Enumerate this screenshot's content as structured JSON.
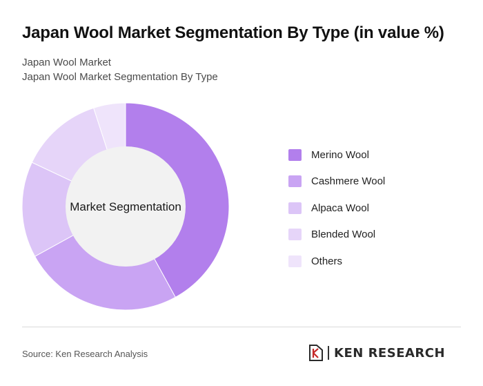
{
  "header": {
    "title": "Japan Wool Market Segmentation By Type (in value %)",
    "subtitle_line1": "Japan Wool Market",
    "subtitle_line2": "Japan Wool Market Segmentation By Type"
  },
  "chart_data": {
    "type": "pie",
    "donut": true,
    "center_label": "Market Segmentation",
    "categories": [
      "Merino Wool",
      "Cashmere Wool",
      "Alpaca Wool",
      "Blended Wool",
      "Others"
    ],
    "values": [
      42,
      25,
      15,
      13,
      5
    ],
    "colors": [
      "#b27fec",
      "#c9a4f3",
      "#dcc5f7",
      "#e6d5f9",
      "#efe4fb"
    ],
    "legend_position": "right"
  },
  "footer": {
    "source": "Source: Ken Research Analysis",
    "logo_text": "KEN RESEARCH"
  },
  "colors": {
    "center_fill": "#f2f2f2",
    "divider": "#d9d9d9"
  }
}
